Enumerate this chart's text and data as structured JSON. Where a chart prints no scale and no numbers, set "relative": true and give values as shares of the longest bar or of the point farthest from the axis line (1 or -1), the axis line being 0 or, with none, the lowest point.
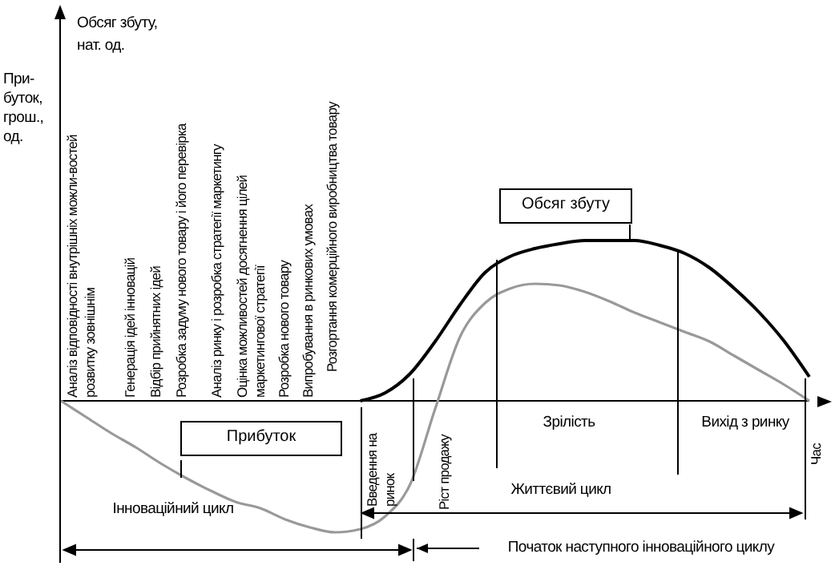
{
  "chart_data": {
    "type": "line",
    "relative": true,
    "categories": [
      null,
      null,
      null,
      null,
      null,
      null,
      null,
      null,
      null,
      null,
      null,
      null,
      null,
      null,
      null,
      null,
      null,
      null,
      null,
      null,
      null,
      null,
      null,
      null,
      null,
      null,
      null,
      null,
      null,
      null,
      null
    ],
    "series": [
      {
        "name": "Прибуток",
        "color": "#999999",
        "values": [
          0,
          -0.1,
          -0.2,
          -0.29,
          -0.39,
          -0.48,
          -0.56,
          -0.63,
          -0.67,
          -0.74,
          -0.79,
          -0.82,
          -0.8,
          -0.72,
          -0.52,
          -0.05,
          0.4,
          0.61,
          0.7,
          0.73,
          0.72,
          0.68,
          0.62,
          0.55,
          0.49,
          0.43,
          0.37,
          0.28,
          0.19,
          0.1,
          0
        ]
      },
      {
        "name": "Обсяг збуту",
        "color": "#000000",
        "values": [
          null,
          null,
          null,
          null,
          null,
          null,
          null,
          null,
          null,
          null,
          null,
          null,
          0,
          0.05,
          0.17,
          0.37,
          0.6,
          0.8,
          0.9,
          0.95,
          0.98,
          1,
          1,
          1,
          0.97,
          0.92,
          0.83,
          0.7,
          0.55,
          0.37,
          0.15
        ]
      }
    ],
    "annotations": [
      "Аналіз відповідності внутрішніх можли-востей розвитку зовнішнім",
      "Генерація ідей інновацій",
      "Відбір прийнятних ідей",
      "Розробка задуму нового товару і його перевірка",
      "Аналіз ринку і розробка стратегії маркетингу",
      "Оцінка можливостей досягнення цілей маркетингової стратегії",
      "Розробка нового товару",
      "Випробування в ринкових умовах",
      "Розгортання комерційного виробництва товару",
      "Введення на ринок",
      "Ріст продажу",
      "Зрілість",
      "Вихід з ринку",
      "Життєвий цикл",
      "Інноваційний цикл",
      "Початок наступного інноваційного циклу",
      "При-буток, грош., од.",
      "Обсяг збуту, нат. од.",
      "Час"
    ]
  }
}
